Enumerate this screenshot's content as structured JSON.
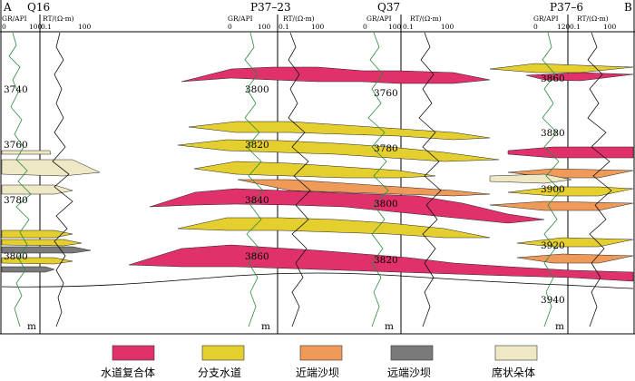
{
  "section": {
    "start_label": "A",
    "end_label": "B"
  },
  "wells": [
    {
      "name": "Q16",
      "gr_label": "GR/API",
      "gr_min": "0",
      "gr_max": "100",
      "rt_label": "RT/(Ω·m)",
      "rt_min": "0.1",
      "rt_max": "100",
      "depths": [
        "3740",
        "3760",
        "3780",
        "3800"
      ],
      "unit": "m"
    },
    {
      "name": "P37–23",
      "gr_label": "GR/API",
      "gr_min": "0",
      "gr_max": "100",
      "rt_label": "RT/(Ω·m)",
      "rt_min": "0.1",
      "rt_max": "100",
      "depths": [
        "3800",
        "3820",
        "3840",
        "3860"
      ],
      "unit": "m"
    },
    {
      "name": "Q37",
      "gr_label": "GR/API",
      "gr_min": "0",
      "gr_max": "100",
      "rt_label": "RT/(Ω·m)",
      "rt_min": "0.1",
      "rt_max": "100",
      "depths": [
        "3760",
        "3780",
        "3800",
        "3820"
      ],
      "unit": "m"
    },
    {
      "name": "P37–6",
      "gr_label": "GR/API",
      "gr_min": "0",
      "gr_max": "120",
      "rt_label": "RT/(Ω·m)",
      "rt_min": "0.1",
      "rt_max": "100",
      "depths": [
        "3860",
        "3880",
        "3900",
        "3920",
        "3940"
      ],
      "unit": "m"
    }
  ],
  "legend": [
    {
      "key": "channel_complex",
      "label": "水道复合体",
      "color": "#e0316b"
    },
    {
      "key": "distributary_channel",
      "label": "分支水道",
      "color": "#e5cf2e"
    },
    {
      "key": "proximal_bar",
      "label": "近端沙坝",
      "color": "#f09a5a"
    },
    {
      "key": "distal_bar",
      "label": "远端沙坝",
      "color": "#7a7a7a"
    },
    {
      "key": "sheet_lobe",
      "label": "席状朵体",
      "color": "#efe8c4"
    }
  ]
}
